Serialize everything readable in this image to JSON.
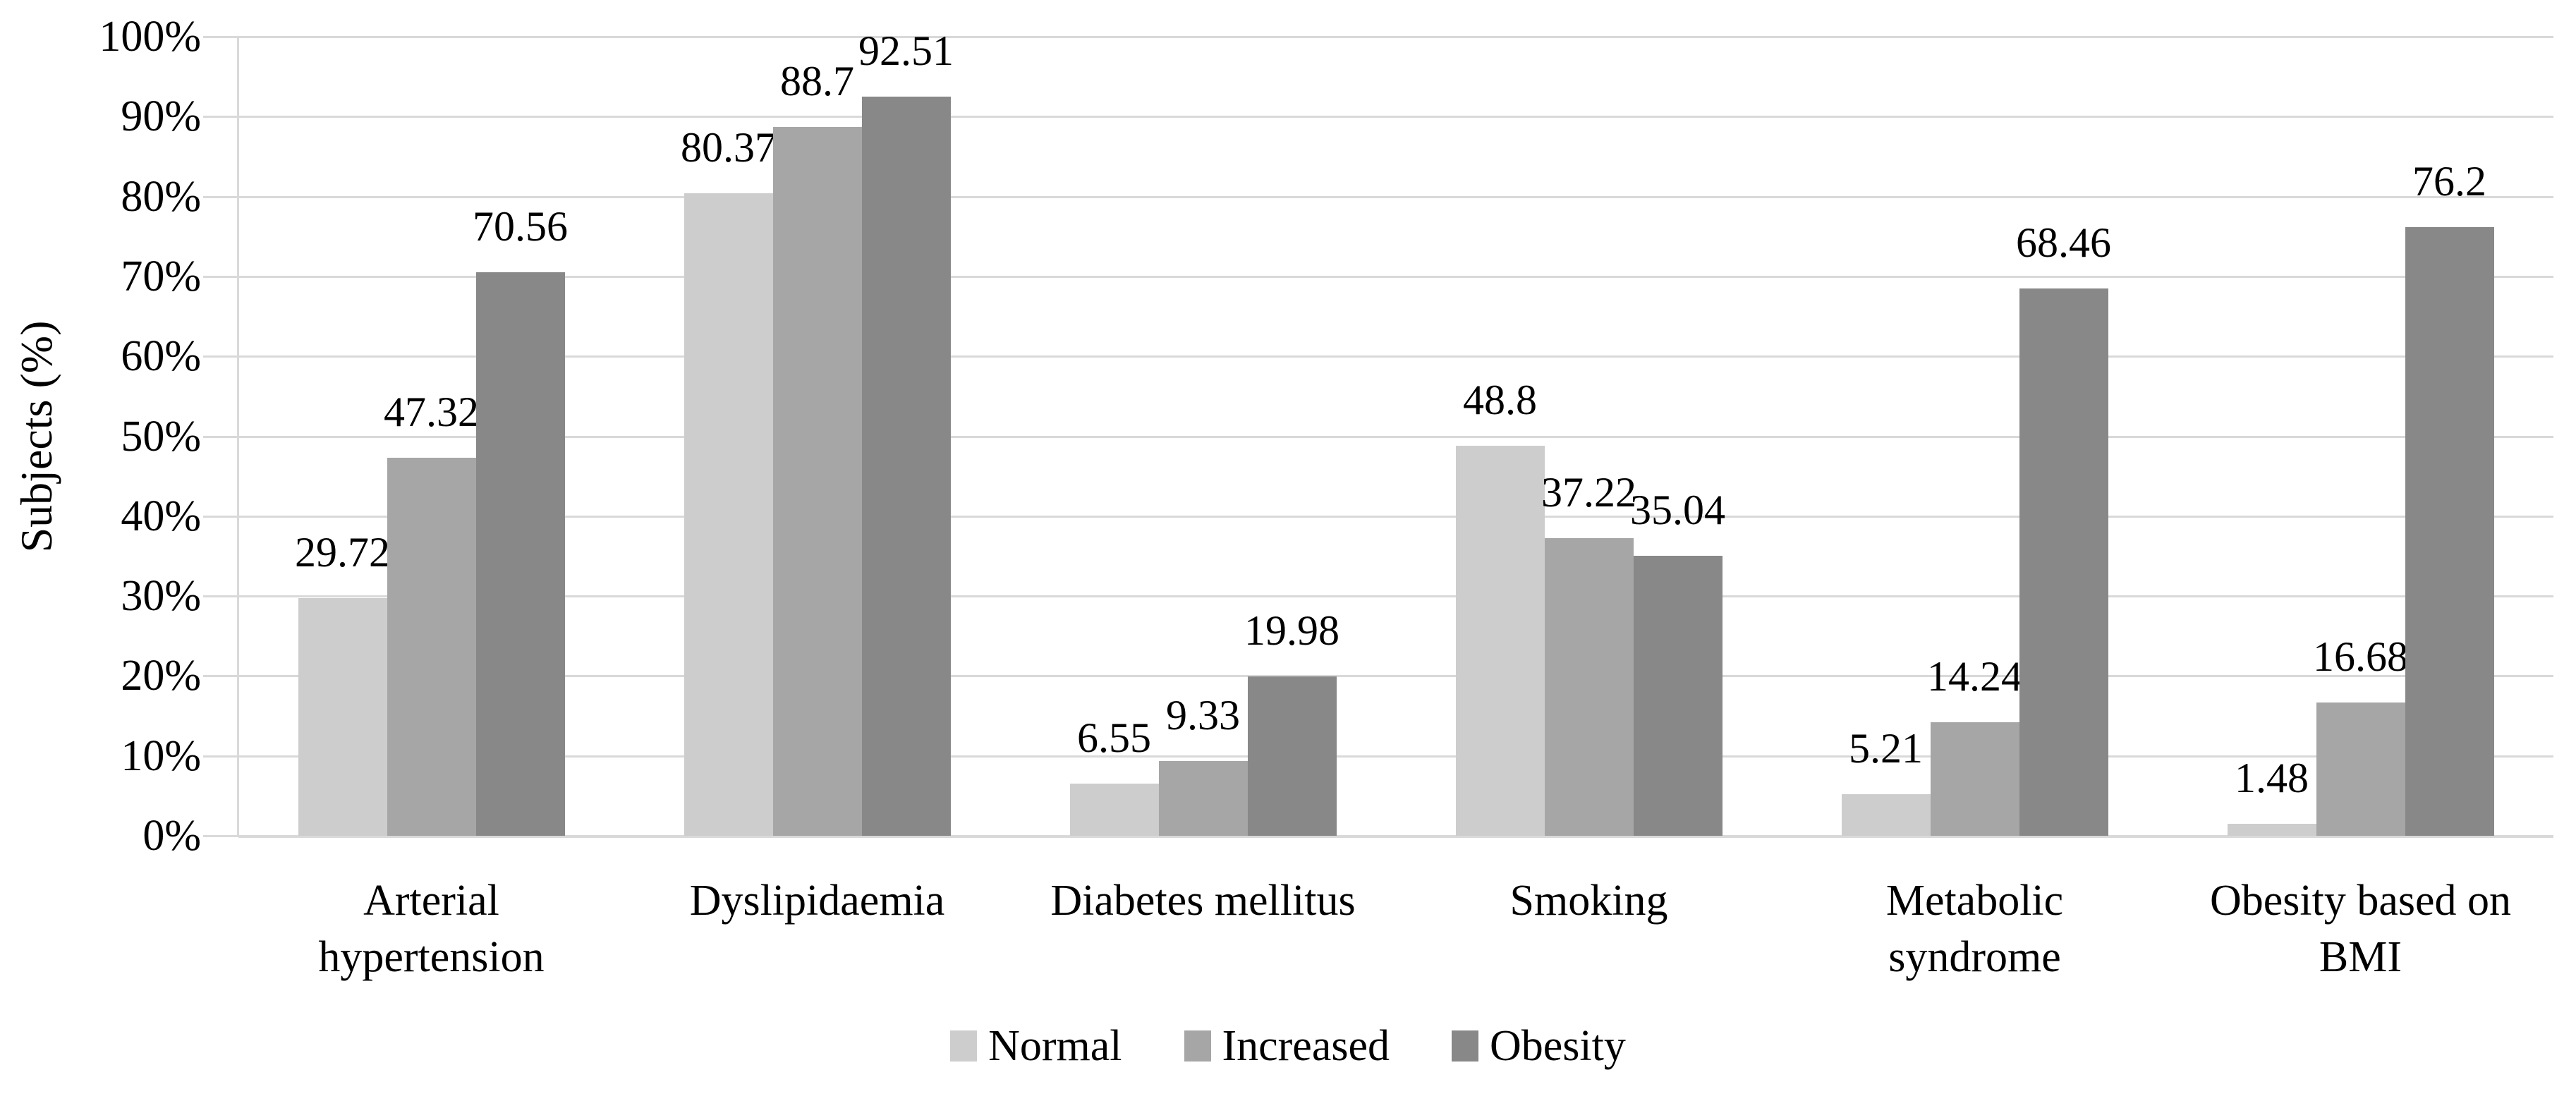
{
  "figure": {
    "background": "#ffffff",
    "text_color": "#000000",
    "gridline_color": "#d9d9d9"
  },
  "chart_data": {
    "type": "bar",
    "title": "",
    "xlabel": "",
    "ylabel": "Subjects (%)",
    "ylim": [
      0,
      100
    ],
    "ytick_step": 10,
    "yticks": [
      "0%",
      "10%",
      "20%",
      "30%",
      "40%",
      "50%",
      "60%",
      "70%",
      "80%",
      "90%",
      "100%"
    ],
    "grid": true,
    "value_labels": true,
    "legend_position": "bottom",
    "categories": [
      "Arterial\nhypertension",
      "Dyslipidaemia",
      "Diabetes mellitus",
      "Smoking",
      "Metabolic\nsyndrome",
      "Obesity based on\nBMI"
    ],
    "series": [
      {
        "name": "Normal",
        "color": "#cdcdcd",
        "values": [
          29.72,
          80.37,
          6.55,
          48.8,
          5.21,
          1.48
        ]
      },
      {
        "name": "Increased",
        "color": "#a6a6a6",
        "values": [
          47.32,
          88.7,
          9.33,
          37.22,
          14.24,
          16.68
        ]
      },
      {
        "name": "Obesity",
        "color": "#888888",
        "values": [
          70.56,
          92.51,
          19.98,
          35.04,
          68.46,
          76.2
        ]
      }
    ]
  }
}
